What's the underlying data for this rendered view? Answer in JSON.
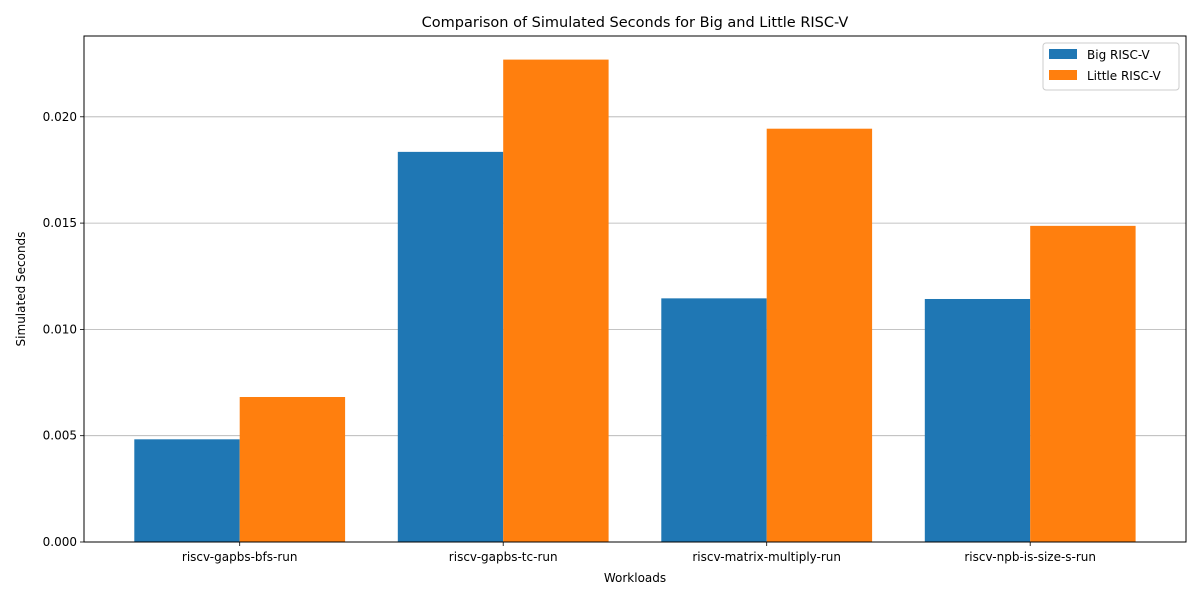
{
  "chart_data": {
    "type": "bar",
    "title": "Comparison of Simulated Seconds for Big and Little RISC-V",
    "xlabel": "Workloads",
    "ylabel": "Simulated Seconds",
    "categories": [
      "riscv-gapbs-bfs-run",
      "riscv-gapbs-tc-run",
      "riscv-matrix-multiply-run",
      "riscv-npb-is-size-s-run"
    ],
    "series": [
      {
        "name": "Big RISC-V",
        "color": "#1f77b4",
        "values": [
          0.00483,
          0.01835,
          0.01146,
          0.01143
        ]
      },
      {
        "name": "Little RISC-V",
        "color": "#ff7f0e",
        "values": [
          0.00682,
          0.02269,
          0.01944,
          0.01487
        ]
      }
    ],
    "ylim": [
      0,
      0.0238
    ],
    "yticks": [
      0,
      0.005,
      0.01,
      0.015,
      0.02
    ],
    "ytick_labels": [
      "0.000",
      "0.005",
      "0.010",
      "0.015",
      "0.020"
    ],
    "grid": "y",
    "legend_position": "top-right"
  }
}
